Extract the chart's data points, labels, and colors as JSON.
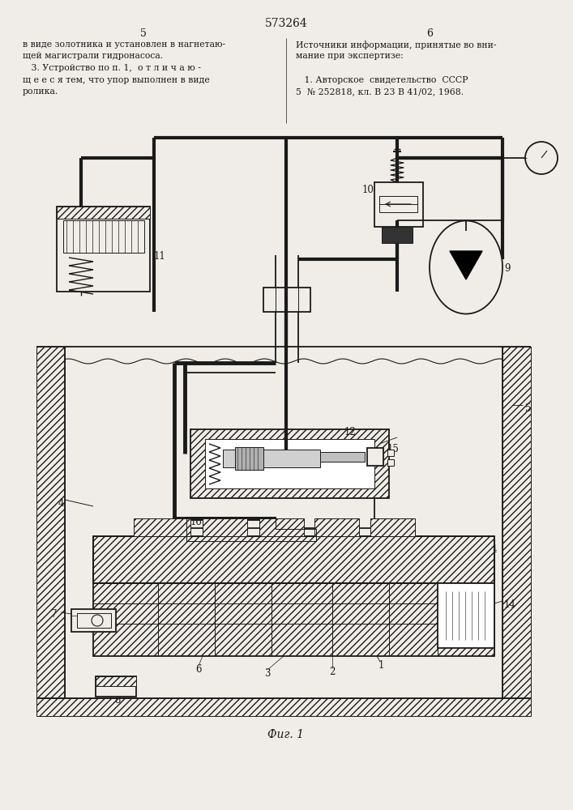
{
  "title": "573264",
  "page_left": "5",
  "page_right": "6",
  "text_left_lines": [
    "в виде золотника и установлен в нагнетаю-",
    "щей магистрали гидронасоса.",
    "   3. Устройство по п. 1,  о т л и ч а ю -",
    "щ е е с я тем, что упор выполнен в виде",
    "ролика."
  ],
  "text_right_lines": [
    "Источники информации, принятые во вни-",
    "мание при экспертизе:",
    "",
    "   1. Авторское  свидетельство  СССР",
    "5  № 252818, кл. В 23 В 41/02, 1968."
  ],
  "fig_label": "Фиг. 1",
  "bg_color": "#f0ede8",
  "line_color": "#1a1a1a"
}
